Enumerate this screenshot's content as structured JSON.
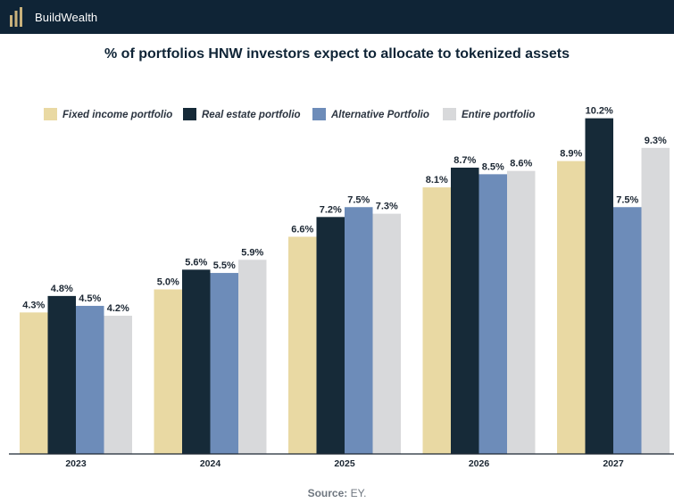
{
  "header": {
    "brand_name": "BuildWealth",
    "brand_icon": "bars-logo-icon",
    "background": "#0f2436",
    "accent": "#c9b27c"
  },
  "chart_data": {
    "type": "bar",
    "title": "% of portfolios HNW investors expect to allocate to tokenized assets",
    "xlabel": "",
    "ylabel": "",
    "ylim": [
      0,
      11.5
    ],
    "grid": false,
    "legend_position": "top-left",
    "categories": [
      "2023",
      "2024",
      "2025",
      "2026",
      "2027"
    ],
    "series": [
      {
        "name": "Fixed income portfolio",
        "color": "#e9d9a3",
        "values": [
          4.3,
          5.0,
          6.6,
          8.1,
          8.9
        ],
        "labels": [
          "4.3%",
          "5.0%",
          "6.6%",
          "8.1%",
          "8.9%"
        ]
      },
      {
        "name": "Real estate portfolio",
        "color": "#162a38",
        "values": [
          4.8,
          5.6,
          7.2,
          8.7,
          10.2
        ],
        "labels": [
          "4.8%",
          "5.6%",
          "7.2%",
          "8.7%",
          "10.2%"
        ]
      },
      {
        "name": "Alternative Portfolio",
        "color": "#6d8cb9",
        "values": [
          4.5,
          5.5,
          7.5,
          8.5,
          7.5
        ],
        "labels": [
          "4.5%",
          "5.5%",
          "7.5%",
          "8.5%",
          "7.5%"
        ]
      },
      {
        "name": "Entire portfolio",
        "color": "#d8d9db",
        "values": [
          4.2,
          5.9,
          7.3,
          8.6,
          9.3
        ],
        "labels": [
          "4.2%",
          "5.9%",
          "7.3%",
          "8.6%",
          "9.3%"
        ]
      }
    ]
  },
  "source": {
    "label": "Source:",
    "text": "EY."
  }
}
